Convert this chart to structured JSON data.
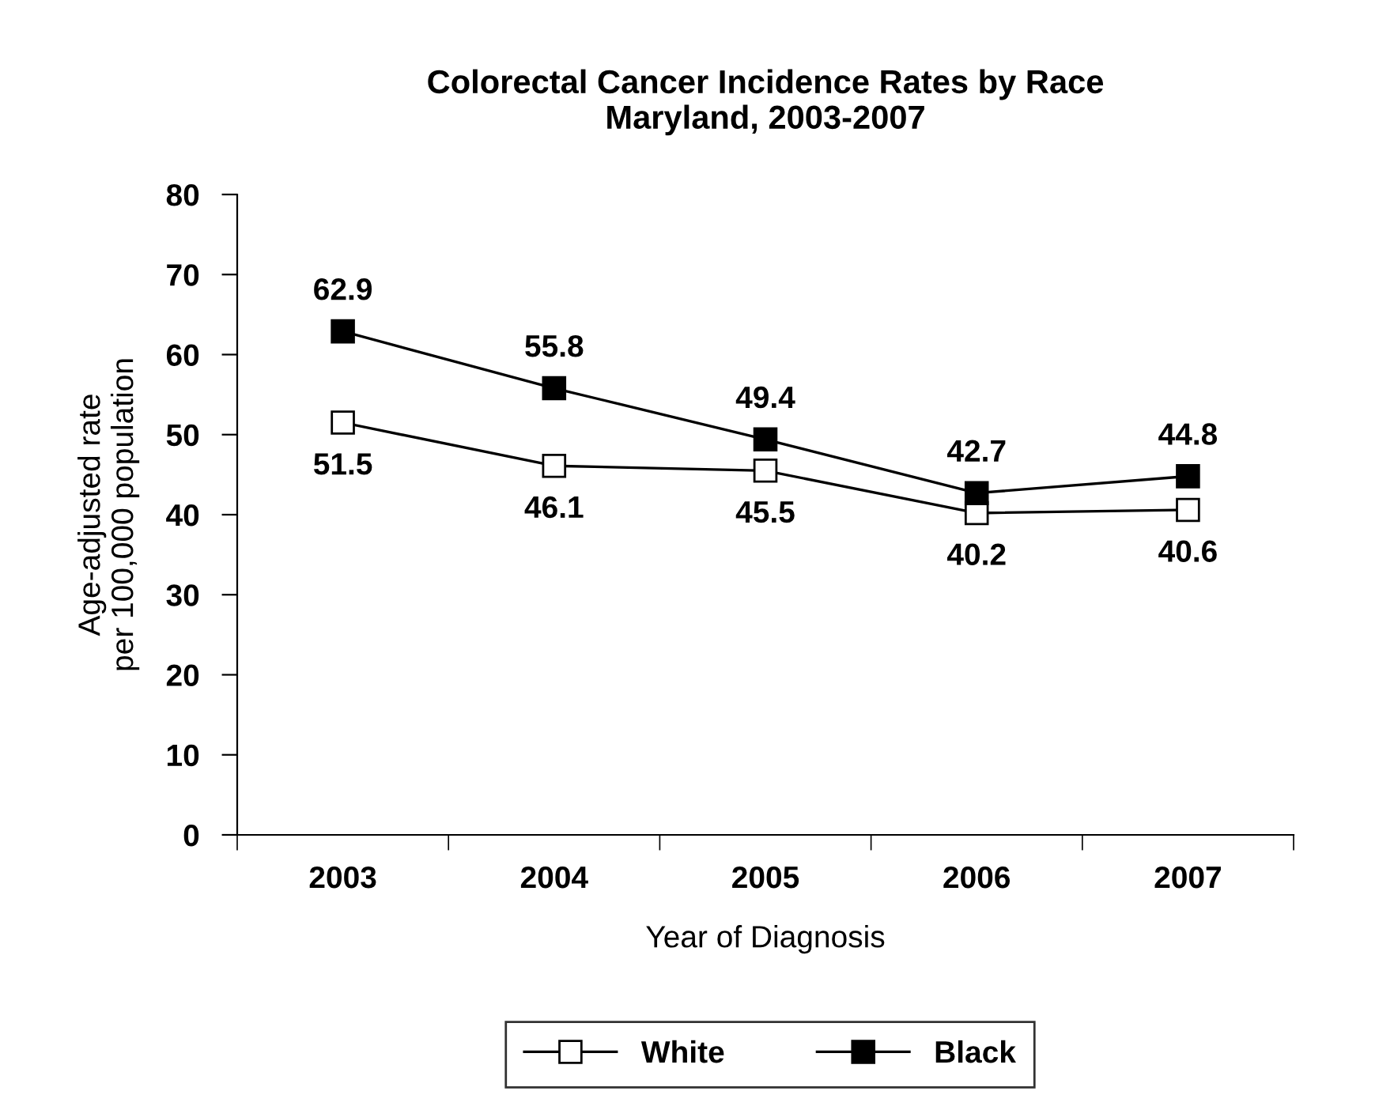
{
  "chart_data": {
    "type": "line",
    "title": "Colorectal Cancer Incidence Rates by Race\nMaryland, 2003-2007",
    "xlabel": "Year of Diagnosis",
    "ylabel": "Age-adjusted rate\nper 100,000 population",
    "categories": [
      "2003",
      "2004",
      "2005",
      "2006",
      "2007"
    ],
    "series": [
      {
        "name": "White",
        "color": "#ffffff",
        "values": [
          51.5,
          46.1,
          45.5,
          40.2,
          40.6
        ]
      },
      {
        "name": "Black",
        "color": "#000000",
        "values": [
          62.9,
          55.8,
          49.4,
          42.7,
          44.8
        ]
      }
    ],
    "ylim": [
      0,
      80
    ],
    "yticks": [
      0,
      10,
      20,
      30,
      40,
      50,
      60,
      70,
      80
    ],
    "data_labels": true,
    "marker": "square",
    "line_style": "solid",
    "legend": "bottom",
    "grid": false
  }
}
